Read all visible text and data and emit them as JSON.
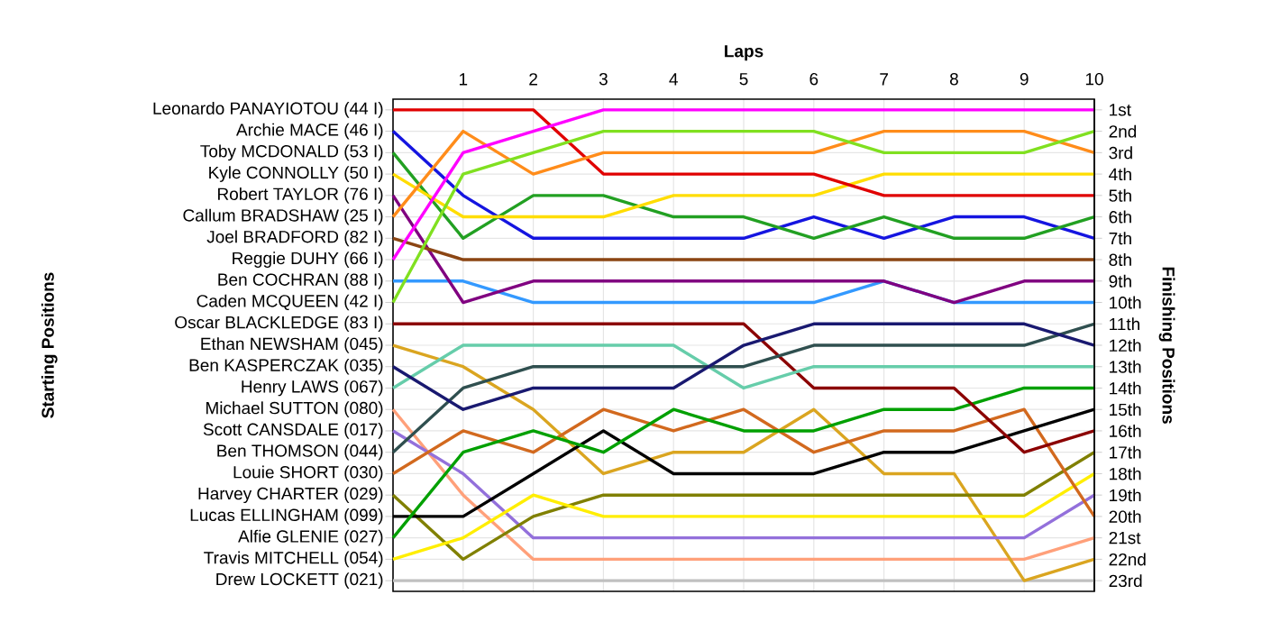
{
  "chart_data": {
    "type": "line",
    "xlabel": "Laps",
    "ylabel": "Finishing Positions",
    "annotations": [
      "Starting Positions"
    ],
    "x": [
      0,
      1,
      2,
      3,
      4,
      5,
      6,
      7,
      8,
      9,
      10
    ],
    "xlim": [
      0,
      10
    ],
    "xticks": [
      1,
      2,
      3,
      4,
      5,
      6,
      7,
      8,
      9,
      10
    ],
    "ylim": [
      23.5,
      0.5
    ],
    "grid": true,
    "marker": "none",
    "line_style": "solid",
    "yticks": [
      {
        "value": 1,
        "label": "1st"
      },
      {
        "value": 2,
        "label": "2nd"
      },
      {
        "value": 3,
        "label": "3rd"
      },
      {
        "value": 4,
        "label": "4th"
      },
      {
        "value": 5,
        "label": "5th"
      },
      {
        "value": 6,
        "label": "6th"
      },
      {
        "value": 7,
        "label": "7th"
      },
      {
        "value": 8,
        "label": "8th"
      },
      {
        "value": 9,
        "label": "9th"
      },
      {
        "value": 10,
        "label": "10th"
      },
      {
        "value": 11,
        "label": "11th"
      },
      {
        "value": 12,
        "label": "12th"
      },
      {
        "value": 13,
        "label": "13th"
      },
      {
        "value": 14,
        "label": "14th"
      },
      {
        "value": 15,
        "label": "15th"
      },
      {
        "value": 16,
        "label": "16th"
      },
      {
        "value": 17,
        "label": "17th"
      },
      {
        "value": 18,
        "label": "18th"
      },
      {
        "value": 19,
        "label": "19th"
      },
      {
        "value": 20,
        "label": "20th"
      },
      {
        "value": 21,
        "label": "21st"
      },
      {
        "value": 22,
        "label": "22nd"
      },
      {
        "value": 23,
        "label": "23rd"
      }
    ],
    "series": [
      {
        "name": "Drew LOCKETT (021)",
        "color": "#c0c0c0",
        "values": [
          23,
          23,
          23,
          23,
          23,
          23,
          23,
          23,
          23,
          23,
          23
        ]
      },
      {
        "name": "Michael SUTTON (080)",
        "color": "#ffa07a",
        "values": [
          15,
          19,
          22,
          22,
          22,
          22,
          22,
          22,
          22,
          22,
          21
        ]
      },
      {
        "name": "Ethan NEWSHAM (045)",
        "color": "#daa520",
        "values": [
          12,
          13,
          15,
          18,
          17,
          17,
          15,
          18,
          18,
          23,
          22
        ]
      },
      {
        "name": "Scott CANSDALE (017)",
        "color": "#9370db",
        "values": [
          16,
          18,
          21,
          21,
          21,
          21,
          21,
          21,
          21,
          21,
          19
        ]
      },
      {
        "name": "Harvey CHARTER (029)",
        "color": "#808000",
        "values": [
          19,
          22,
          20,
          19,
          19,
          19,
          19,
          19,
          19,
          19,
          17
        ]
      },
      {
        "name": "Travis MITCHELL (054)",
        "color": "#ffee00",
        "values": [
          22,
          21,
          19,
          20,
          20,
          20,
          20,
          20,
          20,
          20,
          18
        ]
      },
      {
        "name": "Louie SHORT (030)",
        "color": "#d2691e",
        "values": [
          18,
          16,
          17,
          15,
          16,
          15,
          17,
          16,
          16,
          15,
          20
        ]
      },
      {
        "name": "Lucas ELLINGHAM (099)",
        "color": "#000000",
        "values": [
          20,
          20,
          18,
          16,
          18,
          18,
          18,
          17,
          17,
          16,
          15
        ]
      },
      {
        "name": "Alfie GLENIE (027)",
        "color": "#00a000",
        "values": [
          21,
          17,
          16,
          17,
          15,
          16,
          16,
          15,
          15,
          14,
          14
        ]
      },
      {
        "name": "Oscar BLACKLEDGE (83 I)",
        "color": "#8b0000",
        "values": [
          11,
          11,
          11,
          11,
          11,
          11,
          14,
          14,
          14,
          17,
          16
        ]
      },
      {
        "name": "Henry LAWS (067)",
        "color": "#66cdaa",
        "values": [
          14,
          12,
          12,
          12,
          12,
          14,
          13,
          13,
          13,
          13,
          13
        ]
      },
      {
        "name": "Ben THOMSON (044)",
        "color": "#2f4f4f",
        "values": [
          17,
          14,
          13,
          13,
          13,
          13,
          12,
          12,
          12,
          12,
          11
        ]
      },
      {
        "name": "Ben KASPERCZAK (035)",
        "color": "#191970",
        "values": [
          13,
          15,
          14,
          14,
          14,
          12,
          11,
          11,
          11,
          11,
          12
        ]
      },
      {
        "name": "Ben COCHRAN (88 I)",
        "color": "#3399ff",
        "values": [
          9,
          9,
          10,
          10,
          10,
          10,
          10,
          9,
          10,
          10,
          10
        ]
      },
      {
        "name": "Robert TAYLOR (76 I)",
        "color": "#800080",
        "values": [
          5,
          10,
          9,
          9,
          9,
          9,
          9,
          9,
          10,
          9,
          9
        ]
      },
      {
        "name": "Joel BRADFORD (82 I)",
        "color": "#8b4513",
        "values": [
          7,
          8,
          8,
          8,
          8,
          8,
          8,
          8,
          8,
          8,
          8
        ]
      },
      {
        "name": "Archie MACE (46 I)",
        "color": "#1515e0",
        "values": [
          2,
          5,
          7,
          7,
          7,
          7,
          6,
          7,
          6,
          6,
          7
        ]
      },
      {
        "name": "Toby MCDONALD (53 I)",
        "color": "#22a022",
        "values": [
          3,
          7,
          5,
          5,
          6,
          6,
          7,
          6,
          7,
          7,
          6
        ]
      },
      {
        "name": "Kyle CONNOLLY (50 I)",
        "color": "#ffdd00",
        "values": [
          4,
          6,
          6,
          6,
          5,
          5,
          5,
          4,
          4,
          4,
          4
        ]
      },
      {
        "name": "Leonardo PANAYIOTOU (44 I)",
        "color": "#e00000",
        "values": [
          1,
          1,
          1,
          4,
          4,
          4,
          4,
          5,
          5,
          5,
          5
        ]
      },
      {
        "name": "Callum BRADSHAW (25 I)",
        "color": "#ff8c1a",
        "values": [
          6,
          2,
          4,
          3,
          3,
          3,
          3,
          2,
          2,
          2,
          3
        ]
      },
      {
        "name": "Caden MCQUEEN (42 I)",
        "color": "#80e020",
        "values": [
          10,
          4,
          3,
          2,
          2,
          2,
          2,
          3,
          3,
          3,
          2
        ]
      },
      {
        "name": "Reggie DUHY (66 I)",
        "color": "#ff00ff",
        "values": [
          8,
          3,
          2,
          1,
          1,
          1,
          1,
          1,
          1,
          1,
          1
        ]
      }
    ]
  }
}
